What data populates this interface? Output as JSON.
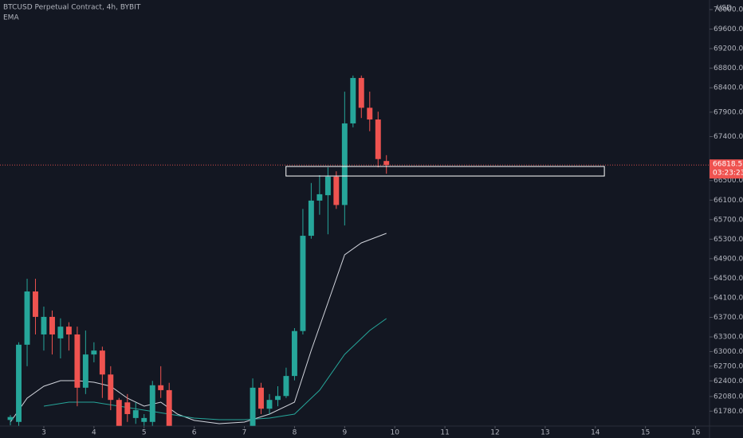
{
  "chart_data": {
    "type": "candlestick",
    "title": "BTCUSD Perpetual Contract, 4h, BYBIT",
    "indicator": "EMA",
    "currency": "USD",
    "up_color": "#26a69a",
    "down_color": "#ef5350",
    "x": [
      2.333,
      2.5,
      2.667,
      2.833,
      3.0,
      3.167,
      3.333,
      3.5,
      3.667,
      3.833,
      4.0,
      4.167,
      4.333,
      4.5,
      4.667,
      4.833,
      5.0,
      5.167,
      5.333,
      5.5,
      7.167,
      7.333,
      7.5,
      7.667,
      7.833,
      8.0,
      8.167,
      8.333,
      8.5,
      8.667,
      8.833,
      9.0,
      9.167,
      9.333,
      9.5,
      9.667,
      9.833
    ],
    "open": [
      61600,
      61560,
      63140,
      64230,
      63350,
      63710,
      63270,
      63510,
      63350,
      62260,
      62940,
      63020,
      62530,
      62010,
      61960,
      61640,
      61560,
      61560,
      62310,
      62210,
      61480,
      62260,
      61830,
      62010,
      62090,
      62500,
      63420,
      65370,
      66090,
      66200,
      66580,
      66000,
      67670,
      68600,
      67990,
      67750,
      66900
    ],
    "high": [
      61700,
      63190,
      64490,
      64490,
      63920,
      63840,
      63680,
      63600,
      63510,
      63430,
      63190,
      63100,
      62700,
      62050,
      62130,
      61960,
      61720,
      62400,
      62700,
      62360,
      62450,
      62360,
      62130,
      62290,
      62670,
      63480,
      65920,
      66450,
      66610,
      66770,
      66690,
      68320,
      68650,
      68650,
      68320,
      67910,
      67020
    ],
    "low": [
      61490,
      61480,
      62700,
      63350,
      63020,
      62940,
      62860,
      63020,
      61880,
      62130,
      62780,
      62050,
      61800,
      61480,
      61560,
      61520,
      61480,
      61480,
      62050,
      61480,
      61480,
      61720,
      61720,
      61880,
      62050,
      62410,
      63350,
      65310,
      65800,
      65400,
      65920,
      65580,
      67590,
      67780,
      67510,
      66770,
      66640
    ],
    "close": [
      61660,
      63140,
      64230,
      63710,
      63710,
      63350,
      63510,
      63350,
      62260,
      62940,
      63020,
      62530,
      62010,
      61480,
      61720,
      61800,
      61640,
      62310,
      62210,
      61480,
      62260,
      61830,
      62010,
      62090,
      62500,
      63420,
      65370,
      66090,
      66220,
      66580,
      66000,
      67670,
      68600,
      67990,
      67750,
      66940,
      66818.5
    ],
    "ema": [
      {
        "color": "#d1d4dc",
        "x": [
          2.333,
          2.667,
          3.0,
          3.333,
          3.667,
          4.0,
          4.333,
          4.667,
          5.0,
          5.333,
          5.667,
          6.0,
          6.5,
          7.0,
          7.5,
          8.0,
          8.333,
          8.667,
          9.0,
          9.333,
          9.833
        ],
        "values": [
          61557,
          62046,
          62290,
          62404,
          62404,
          62372,
          62290,
          62046,
          61883,
          61964,
          61720,
          61590,
          61524,
          61557,
          61720,
          61964,
          63024,
          64002,
          64980,
          65225,
          65420
        ]
      },
      {
        "color": "#26a69a",
        "x": [
          3.0,
          3.5,
          4.0,
          4.5,
          5.0,
          5.5,
          6.0,
          6.5,
          7.0,
          7.5,
          8.0,
          8.5,
          9.0,
          9.5,
          9.833
        ],
        "values": [
          61883,
          61964,
          61964,
          61883,
          61801,
          61720,
          61638,
          61606,
          61606,
          61638,
          61720,
          62209,
          62942,
          63431,
          63676
        ]
      }
    ],
    "zone": {
      "x": [
        7.83,
        14.18
      ],
      "y": [
        66593,
        66789
      ]
    },
    "last_price": 66818.5,
    "countdown": "03:23:23",
    "xlim": [
      2.126,
      16.277
    ],
    "xticks": [
      3,
      4,
      5,
      6,
      7,
      8,
      9,
      10,
      11,
      12,
      13,
      14,
      15,
      16
    ],
    "ylim": [
      61475,
      70196
    ],
    "yticks": [
      {
        "value": 70000,
        "label": "70000.0"
      },
      {
        "value": 69600,
        "label": "69600.0"
      },
      {
        "value": 69200,
        "label": "69200.0"
      },
      {
        "value": 68800,
        "label": "68800.0"
      },
      {
        "value": 68400,
        "label": "68400.0"
      },
      {
        "value": 67900,
        "label": "67900.0"
      },
      {
        "value": 67400,
        "label": "67400.0"
      },
      {
        "value": 66500,
        "label": "66500.0"
      },
      {
        "value": 66100,
        "label": "66100.0"
      },
      {
        "value": 65700,
        "label": "65700.0"
      },
      {
        "value": 65300,
        "label": "65300.0"
      },
      {
        "value": 64900,
        "label": "64900.0"
      },
      {
        "value": 64500,
        "label": "64500.0"
      },
      {
        "value": 64100,
        "label": "64100.0"
      },
      {
        "value": 63700,
        "label": "63700.0"
      },
      {
        "value": 63300,
        "label": "63300.0"
      },
      {
        "value": 63000,
        "label": "63000.0"
      },
      {
        "value": 62700,
        "label": "62700.0"
      },
      {
        "value": 62400,
        "label": "62400.0"
      },
      {
        "value": 62080,
        "label": "62080.0"
      },
      {
        "value": 61780,
        "label": "61780.0"
      }
    ]
  }
}
